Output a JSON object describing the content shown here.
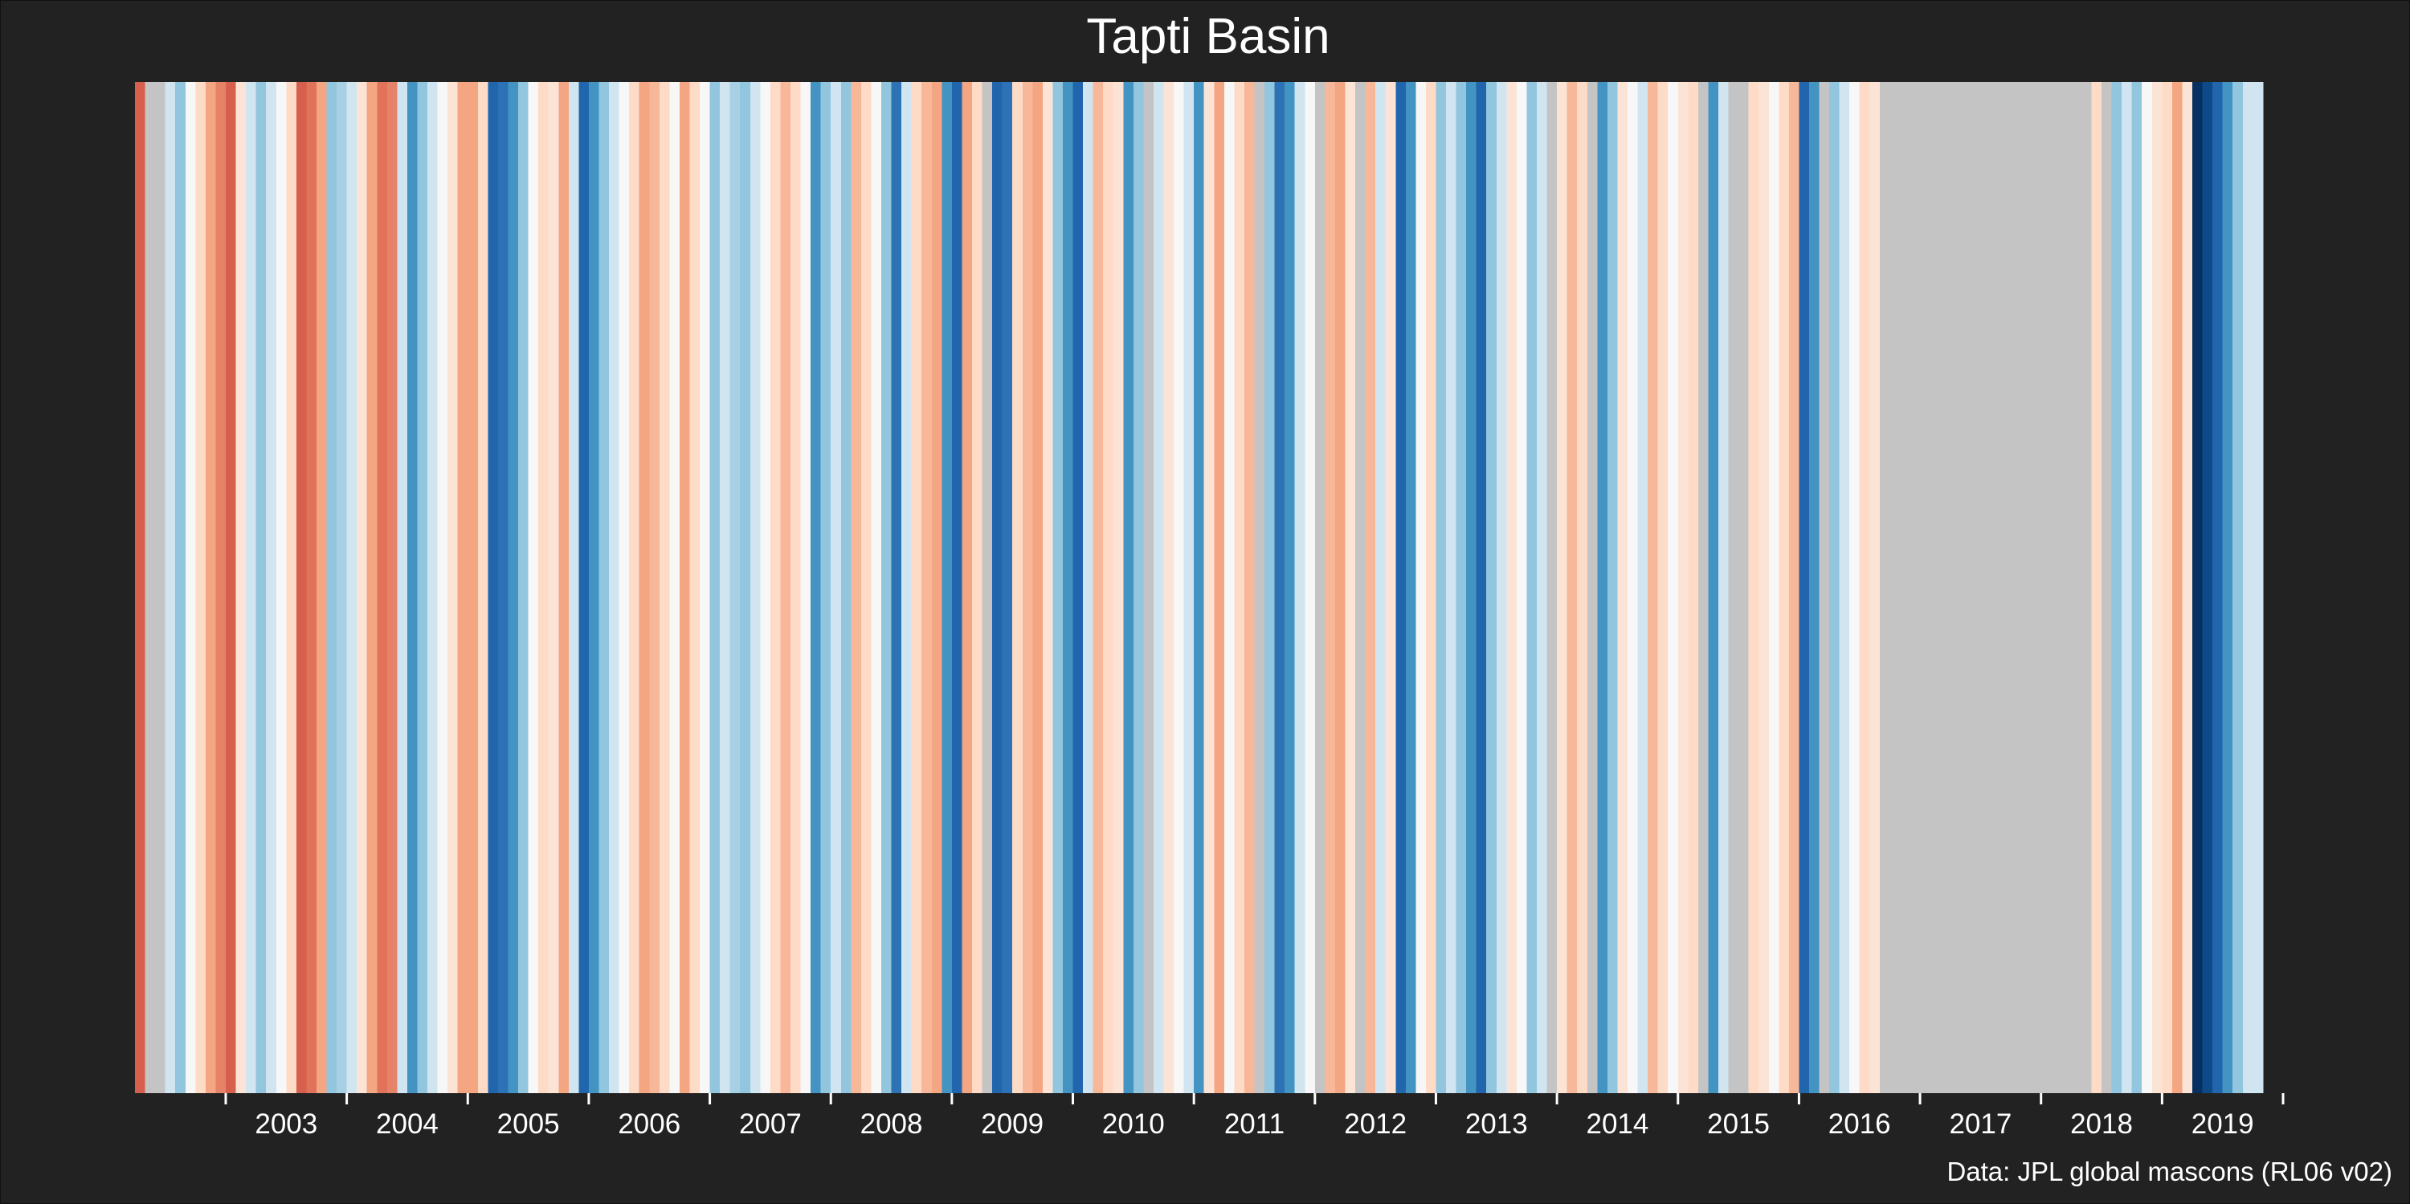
{
  "chart_data": {
    "type": "heatmap",
    "title": "Tapti Basin",
    "caption": "Data: JPL global mascons (RL06 v02)",
    "xlabel": "",
    "ylabel": "",
    "legend": "none",
    "grid": false,
    "x_start": "2002-04",
    "x_end": "2020-01",
    "x_ticks": [
      "2003",
      "2004",
      "2005",
      "2006",
      "2007",
      "2008",
      "2009",
      "2010",
      "2011",
      "2012",
      "2013",
      "2014",
      "2015",
      "2016",
      "2017",
      "2018",
      "2019"
    ],
    "missing_color": "#c4c4c4",
    "stripes": [
      {
        "date": "2002-04",
        "color": "#d6604d"
      },
      {
        "date": "2002-05",
        "color": "#c4c4c4"
      },
      {
        "date": "2002-06",
        "color": "#c4c4c4"
      },
      {
        "date": "2002-07",
        "color": "#d1e5f0"
      },
      {
        "date": "2002-08",
        "color": "#92c5de"
      },
      {
        "date": "2002-09",
        "color": "#f7f7f7"
      },
      {
        "date": "2002-10",
        "color": "#fddbc7"
      },
      {
        "date": "2002-11",
        "color": "#f4a582"
      },
      {
        "date": "2002-12",
        "color": "#e58368"
      },
      {
        "date": "2003-01",
        "color": "#d6604d"
      },
      {
        "date": "2003-02",
        "color": "#fbe4d6"
      },
      {
        "date": "2003-03",
        "color": "#d1e5f0"
      },
      {
        "date": "2003-04",
        "color": "#92c5de"
      },
      {
        "date": "2003-05",
        "color": "#d1e5f0"
      },
      {
        "date": "2003-06",
        "color": "#f7f7f7"
      },
      {
        "date": "2003-07",
        "color": "#fddbc7"
      },
      {
        "date": "2003-08",
        "color": "#d6604d"
      },
      {
        "date": "2003-09",
        "color": "#e0735a"
      },
      {
        "date": "2003-10",
        "color": "#f4a582"
      },
      {
        "date": "2003-11",
        "color": "#92c5de"
      },
      {
        "date": "2003-12",
        "color": "#a8d0e4"
      },
      {
        "date": "2004-01",
        "color": "#d1e5f0"
      },
      {
        "date": "2004-02",
        "color": "#fbe4d6"
      },
      {
        "date": "2004-03",
        "color": "#f4a582"
      },
      {
        "date": "2004-04",
        "color": "#e0735a"
      },
      {
        "date": "2004-05",
        "color": "#e58368"
      },
      {
        "date": "2004-06",
        "color": "#d1e5f0"
      },
      {
        "date": "2004-07",
        "color": "#4393c3"
      },
      {
        "date": "2004-08",
        "color": "#92c5de"
      },
      {
        "date": "2004-09",
        "color": "#d1e5f0"
      },
      {
        "date": "2004-10",
        "color": "#f7f7f7"
      },
      {
        "date": "2004-11",
        "color": "#fbe4d6"
      },
      {
        "date": "2004-12",
        "color": "#f4a582"
      },
      {
        "date": "2005-01",
        "color": "#f4a582"
      },
      {
        "date": "2005-02",
        "color": "#fddbc7"
      },
      {
        "date": "2005-03",
        "color": "#2166ac"
      },
      {
        "date": "2005-04",
        "color": "#2c72b4"
      },
      {
        "date": "2005-05",
        "color": "#4393c3"
      },
      {
        "date": "2005-06",
        "color": "#92c5de"
      },
      {
        "date": "2005-07",
        "color": "#f7f7f7"
      },
      {
        "date": "2005-08",
        "color": "#fddbc7"
      },
      {
        "date": "2005-09",
        "color": "#fbe4d6"
      },
      {
        "date": "2005-10",
        "color": "#f4a582"
      },
      {
        "date": "2005-11",
        "color": "#d1e5f0"
      },
      {
        "date": "2005-12",
        "color": "#2166ac"
      },
      {
        "date": "2006-01",
        "color": "#4393c3"
      },
      {
        "date": "2006-02",
        "color": "#92c5de"
      },
      {
        "date": "2006-03",
        "color": "#d1e5f0"
      },
      {
        "date": "2006-04",
        "color": "#f7f7f7"
      },
      {
        "date": "2006-05",
        "color": "#fddbc7"
      },
      {
        "date": "2006-06",
        "color": "#f4a582"
      },
      {
        "date": "2006-07",
        "color": "#f7b799"
      },
      {
        "date": "2006-08",
        "color": "#fddbc7"
      },
      {
        "date": "2006-09",
        "color": "#f7f7f7"
      },
      {
        "date": "2006-10",
        "color": "#f4a582"
      },
      {
        "date": "2006-11",
        "color": "#fddbc7"
      },
      {
        "date": "2006-12",
        "color": "#f7f7f7"
      },
      {
        "date": "2007-01",
        "color": "#92c5de"
      },
      {
        "date": "2007-02",
        "color": "#d1e5f0"
      },
      {
        "date": "2007-03",
        "color": "#a8d0e4"
      },
      {
        "date": "2007-04",
        "color": "#92c5de"
      },
      {
        "date": "2007-05",
        "color": "#d1e5f0"
      },
      {
        "date": "2007-06",
        "color": "#f7f7f7"
      },
      {
        "date": "2007-07",
        "color": "#fddbc7"
      },
      {
        "date": "2007-08",
        "color": "#f7b799"
      },
      {
        "date": "2007-09",
        "color": "#fddbc7"
      },
      {
        "date": "2007-10",
        "color": "#f7f7f7"
      },
      {
        "date": "2007-11",
        "color": "#4393c3"
      },
      {
        "date": "2007-12",
        "color": "#92c5de"
      },
      {
        "date": "2008-01",
        "color": "#d1e5f0"
      },
      {
        "date": "2008-02",
        "color": "#92c5de"
      },
      {
        "date": "2008-03",
        "color": "#f7b799"
      },
      {
        "date": "2008-04",
        "color": "#fddbc7"
      },
      {
        "date": "2008-05",
        "color": "#f7f7f7"
      },
      {
        "date": "2008-06",
        "color": "#92c5de"
      },
      {
        "date": "2008-07",
        "color": "#2c72b4"
      },
      {
        "date": "2008-08",
        "color": "#d1e5f0"
      },
      {
        "date": "2008-09",
        "color": "#fddbc7"
      },
      {
        "date": "2008-10",
        "color": "#f7b799"
      },
      {
        "date": "2008-11",
        "color": "#f4a582"
      },
      {
        "date": "2008-12",
        "color": "#4393c3"
      },
      {
        "date": "2009-01",
        "color": "#2166ac"
      },
      {
        "date": "2009-02",
        "color": "#f4a582"
      },
      {
        "date": "2009-03",
        "color": "#fddbc7"
      },
      {
        "date": "2009-04",
        "color": "#c4c4c4"
      },
      {
        "date": "2009-05",
        "color": "#2166ac"
      },
      {
        "date": "2009-06",
        "color": "#2c72b4"
      },
      {
        "date": "2009-07",
        "color": "#fddbc7"
      },
      {
        "date": "2009-08",
        "color": "#f7b799"
      },
      {
        "date": "2009-09",
        "color": "#f4a582"
      },
      {
        "date": "2009-10",
        "color": "#fbe4d6"
      },
      {
        "date": "2009-11",
        "color": "#92c5de"
      },
      {
        "date": "2009-12",
        "color": "#4393c3"
      },
      {
        "date": "2010-01",
        "color": "#2166ac"
      },
      {
        "date": "2010-02",
        "color": "#d1e5f0"
      },
      {
        "date": "2010-03",
        "color": "#f7b799"
      },
      {
        "date": "2010-04",
        "color": "#fddbc7"
      },
      {
        "date": "2010-05",
        "color": "#fbe4d6"
      },
      {
        "date": "2010-06",
        "color": "#4393c3"
      },
      {
        "date": "2010-07",
        "color": "#92c5de"
      },
      {
        "date": "2010-08",
        "color": "#c4c4c4"
      },
      {
        "date": "2010-09",
        "color": "#d1e5f0"
      },
      {
        "date": "2010-10",
        "color": "#fbe4d6"
      },
      {
        "date": "2010-11",
        "color": "#f7f7f7"
      },
      {
        "date": "2010-12",
        "color": "#d1e5f0"
      },
      {
        "date": "2011-01",
        "color": "#4393c3"
      },
      {
        "date": "2011-02",
        "color": "#fbe4d6"
      },
      {
        "date": "2011-03",
        "color": "#f4a582"
      },
      {
        "date": "2011-04",
        "color": "#f7f7f7"
      },
      {
        "date": "2011-05",
        "color": "#fddbc7"
      },
      {
        "date": "2011-06",
        "color": "#f7b799"
      },
      {
        "date": "2011-07",
        "color": "#c4c4c4"
      },
      {
        "date": "2011-08",
        "color": "#92c5de"
      },
      {
        "date": "2011-09",
        "color": "#2c72b4"
      },
      {
        "date": "2011-10",
        "color": "#4393c3"
      },
      {
        "date": "2011-11",
        "color": "#d1e5f0"
      },
      {
        "date": "2011-12",
        "color": "#f7f7f7"
      },
      {
        "date": "2012-01",
        "color": "#c4c4c4"
      },
      {
        "date": "2012-02",
        "color": "#f7b799"
      },
      {
        "date": "2012-03",
        "color": "#f4a582"
      },
      {
        "date": "2012-04",
        "color": "#fbe4d6"
      },
      {
        "date": "2012-05",
        "color": "#c4c4c4"
      },
      {
        "date": "2012-06",
        "color": "#f7b799"
      },
      {
        "date": "2012-07",
        "color": "#d1e5f0"
      },
      {
        "date": "2012-08",
        "color": "#fbe4d6"
      },
      {
        "date": "2012-09",
        "color": "#2166ac"
      },
      {
        "date": "2012-10",
        "color": "#4393c3"
      },
      {
        "date": "2012-11",
        "color": "#f7f7f7"
      },
      {
        "date": "2012-12",
        "color": "#fddbc7"
      },
      {
        "date": "2013-01",
        "color": "#92c5de"
      },
      {
        "date": "2013-02",
        "color": "#d1e5f0"
      },
      {
        "date": "2013-03",
        "color": "#92c5de"
      },
      {
        "date": "2013-04",
        "color": "#4393c3"
      },
      {
        "date": "2013-05",
        "color": "#2166ac"
      },
      {
        "date": "2013-06",
        "color": "#92c5de"
      },
      {
        "date": "2013-07",
        "color": "#d1e5f0"
      },
      {
        "date": "2013-08",
        "color": "#fbe4d6"
      },
      {
        "date": "2013-09",
        "color": "#f7f7f7"
      },
      {
        "date": "2013-10",
        "color": "#92c5de"
      },
      {
        "date": "2013-11",
        "color": "#d1e5f0"
      },
      {
        "date": "2013-12",
        "color": "#c4c4c4"
      },
      {
        "date": "2014-01",
        "color": "#fbe4d6"
      },
      {
        "date": "2014-02",
        "color": "#f7b799"
      },
      {
        "date": "2014-03",
        "color": "#fddbc7"
      },
      {
        "date": "2014-04",
        "color": "#c4c4c4"
      },
      {
        "date": "2014-05",
        "color": "#4393c3"
      },
      {
        "date": "2014-06",
        "color": "#92c5de"
      },
      {
        "date": "2014-07",
        "color": "#fbe4d6"
      },
      {
        "date": "2014-08",
        "color": "#f7f7f7"
      },
      {
        "date": "2014-09",
        "color": "#d1e5f0"
      },
      {
        "date": "2014-10",
        "color": "#f7b799"
      },
      {
        "date": "2014-11",
        "color": "#fddbc7"
      },
      {
        "date": "2014-12",
        "color": "#f7f7f7"
      },
      {
        "date": "2015-01",
        "color": "#fbe4d6"
      },
      {
        "date": "2015-02",
        "color": "#fddbc7"
      },
      {
        "date": "2015-03",
        "color": "#c4c4c4"
      },
      {
        "date": "2015-04",
        "color": "#4393c3"
      },
      {
        "date": "2015-05",
        "color": "#d1e5f0"
      },
      {
        "date": "2015-06",
        "color": "#c4c4c4"
      },
      {
        "date": "2015-07",
        "color": "#c4c4c4"
      },
      {
        "date": "2015-08",
        "color": "#fddbc7"
      },
      {
        "date": "2015-09",
        "color": "#fbe4d6"
      },
      {
        "date": "2015-10",
        "color": "#f7f7f7"
      },
      {
        "date": "2015-11",
        "color": "#fddbc7"
      },
      {
        "date": "2015-12",
        "color": "#f7b799"
      },
      {
        "date": "2016-01",
        "color": "#2166ac"
      },
      {
        "date": "2016-02",
        "color": "#4393c3"
      },
      {
        "date": "2016-03",
        "color": "#c4c4c4"
      },
      {
        "date": "2016-04",
        "color": "#92c5de"
      },
      {
        "date": "2016-05",
        "color": "#d1e5f0"
      },
      {
        "date": "2016-06",
        "color": "#f7f7f7"
      },
      {
        "date": "2016-07",
        "color": "#fddbc7"
      },
      {
        "date": "2016-08",
        "color": "#fbe4d6"
      },
      {
        "date": "2016-09",
        "color": "#c4c4c4"
      },
      {
        "date": "2016-10",
        "color": "#c4c4c4"
      },
      {
        "date": "2016-11",
        "color": "#c4c4c4"
      },
      {
        "date": "2016-12",
        "color": "#c4c4c4"
      },
      {
        "date": "2017-01",
        "color": "#c4c4c4"
      },
      {
        "date": "2017-02",
        "color": "#c4c4c4"
      },
      {
        "date": "2017-03",
        "color": "#c4c4c4"
      },
      {
        "date": "2017-04",
        "color": "#c4c4c4"
      },
      {
        "date": "2017-05",
        "color": "#c4c4c4"
      },
      {
        "date": "2017-06",
        "color": "#c4c4c4"
      },
      {
        "date": "2017-07",
        "color": "#c4c4c4"
      },
      {
        "date": "2017-08",
        "color": "#c4c4c4"
      },
      {
        "date": "2017-09",
        "color": "#c4c4c4"
      },
      {
        "date": "2017-10",
        "color": "#c4c4c4"
      },
      {
        "date": "2017-11",
        "color": "#c4c4c4"
      },
      {
        "date": "2017-12",
        "color": "#c4c4c4"
      },
      {
        "date": "2018-01",
        "color": "#c4c4c4"
      },
      {
        "date": "2018-02",
        "color": "#c4c4c4"
      },
      {
        "date": "2018-03",
        "color": "#c4c4c4"
      },
      {
        "date": "2018-04",
        "color": "#c4c4c4"
      },
      {
        "date": "2018-05",
        "color": "#c4c4c4"
      },
      {
        "date": "2018-06",
        "color": "#fddbc7"
      },
      {
        "date": "2018-07",
        "color": "#c4c4c4"
      },
      {
        "date": "2018-08",
        "color": "#92c5de"
      },
      {
        "date": "2018-09",
        "color": "#d1e5f0"
      },
      {
        "date": "2018-10",
        "color": "#92c5de"
      },
      {
        "date": "2018-11",
        "color": "#f7f7f7"
      },
      {
        "date": "2018-12",
        "color": "#fbe4d6"
      },
      {
        "date": "2019-01",
        "color": "#fddbc7"
      },
      {
        "date": "2019-02",
        "color": "#f4a582"
      },
      {
        "date": "2019-03",
        "color": "#fbe4d6"
      },
      {
        "date": "2019-04",
        "color": "#053061"
      },
      {
        "date": "2019-05",
        "color": "#0d4a87"
      },
      {
        "date": "2019-06",
        "color": "#2166ac"
      },
      {
        "date": "2019-07",
        "color": "#4393c3"
      },
      {
        "date": "2019-08",
        "color": "#92c5de"
      },
      {
        "date": "2019-09",
        "color": "#d1e5f0"
      },
      {
        "date": "2019-10",
        "color": "#d1e5f0"
      }
    ]
  }
}
